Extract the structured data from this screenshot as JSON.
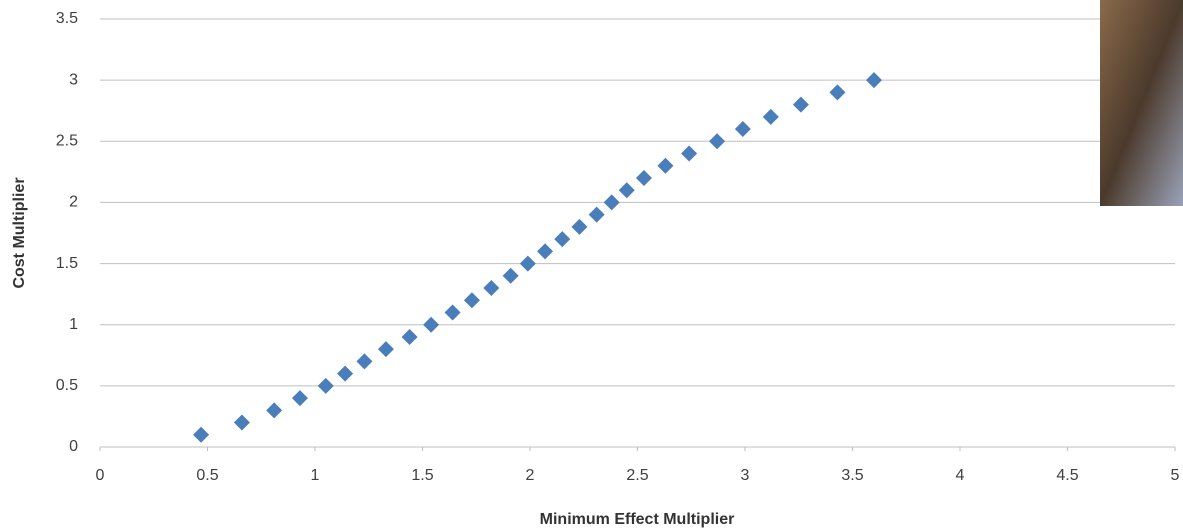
{
  "chart_data": {
    "type": "scatter",
    "x_label": "Minimum Effect Multiplier",
    "y_label": "Cost Multiplier",
    "color": "#4a7ebb",
    "grid": true,
    "xlim": [
      0,
      5
    ],
    "xticks": [
      0,
      0.5,
      1,
      1.5,
      2,
      2.5,
      3,
      3.5,
      4,
      4.5,
      5
    ],
    "ylim": [
      0,
      3.5
    ],
    "yticks": [
      0,
      0.5,
      1,
      1.5,
      2,
      2.5,
      3,
      3.5
    ],
    "x": [
      0.47,
      0.66,
      0.81,
      0.93,
      1.05,
      1.14,
      1.23,
      1.33,
      1.44,
      1.54,
      1.64,
      1.73,
      1.82,
      1.91,
      1.99,
      2.07,
      2.15,
      2.23,
      2.31,
      2.38,
      2.45,
      2.53,
      2.63,
      2.74,
      2.87,
      2.99,
      3.12,
      3.26,
      3.43,
      3.6
    ],
    "values": [
      0.1,
      0.2,
      0.3,
      0.4,
      0.5,
      0.6,
      0.7,
      0.8,
      0.9,
      1.0,
      1.1,
      1.2,
      1.3,
      1.4,
      1.5,
      1.6,
      1.7,
      1.8,
      1.9,
      2.0,
      2.1,
      2.2,
      2.3,
      2.4,
      2.5,
      2.6,
      2.7,
      2.8,
      2.9,
      3.0
    ]
  }
}
